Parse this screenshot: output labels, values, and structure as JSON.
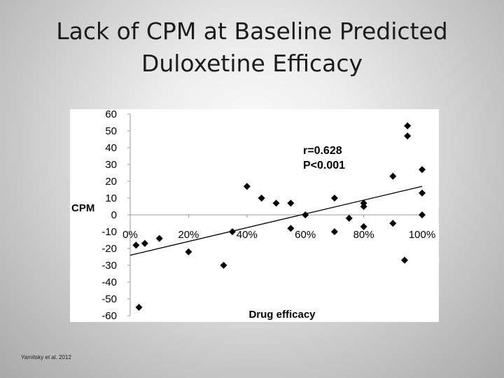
{
  "slide": {
    "title_line1": "Lack of CPM at Baseline Predicted",
    "title_line2": "Duloxetine Efficacy",
    "citation": "Yarnitsky et al. 2012"
  },
  "chart_data": {
    "type": "scatter",
    "title": "",
    "xlabel": "Drug efficacy",
    "ylabel": "CPM",
    "xlim": [
      0,
      100
    ],
    "ylim": [
      -60,
      60
    ],
    "y_ticks": [
      "60",
      "50",
      "40",
      "30",
      "20",
      "10",
      "0",
      "-10",
      "-20",
      "-30",
      "-40",
      "-50",
      "-60"
    ],
    "y_tick_values": [
      60,
      50,
      40,
      30,
      20,
      10,
      0,
      -10,
      -20,
      -30,
      -40,
      -50,
      -60
    ],
    "x_ticks": [
      "0%",
      "20%",
      "40%",
      "60%",
      "80%",
      "100%"
    ],
    "x_tick_values": [
      0,
      20,
      40,
      60,
      80,
      100
    ],
    "grid": false,
    "marker": "diamond",
    "marker_color": "#000000",
    "annotation_r": "r=0.628",
    "annotation_p": "P<0.001",
    "trendline": {
      "x": [
        0,
        100
      ],
      "y": [
        -24,
        17
      ]
    },
    "points": [
      {
        "x": 2,
        "y": -18
      },
      {
        "x": 3,
        "y": -55
      },
      {
        "x": 5,
        "y": -17
      },
      {
        "x": 10,
        "y": -14
      },
      {
        "x": 20,
        "y": -22
      },
      {
        "x": 32,
        "y": -30
      },
      {
        "x": 35,
        "y": -10
      },
      {
        "x": 40,
        "y": 17
      },
      {
        "x": 45,
        "y": 10
      },
      {
        "x": 50,
        "y": 7
      },
      {
        "x": 55,
        "y": 7
      },
      {
        "x": 55,
        "y": -8
      },
      {
        "x": 60,
        "y": 0
      },
      {
        "x": 70,
        "y": 10
      },
      {
        "x": 70,
        "y": -10
      },
      {
        "x": 75,
        "y": -2
      },
      {
        "x": 80,
        "y": 7
      },
      {
        "x": 80,
        "y": 5
      },
      {
        "x": 80,
        "y": -7
      },
      {
        "x": 90,
        "y": 23
      },
      {
        "x": 90,
        "y": -5
      },
      {
        "x": 94,
        "y": -27
      },
      {
        "x": 95,
        "y": 53
      },
      {
        "x": 95,
        "y": 47
      },
      {
        "x": 100,
        "y": 27
      },
      {
        "x": 100,
        "y": 13
      },
      {
        "x": 100,
        "y": 0
      }
    ]
  }
}
